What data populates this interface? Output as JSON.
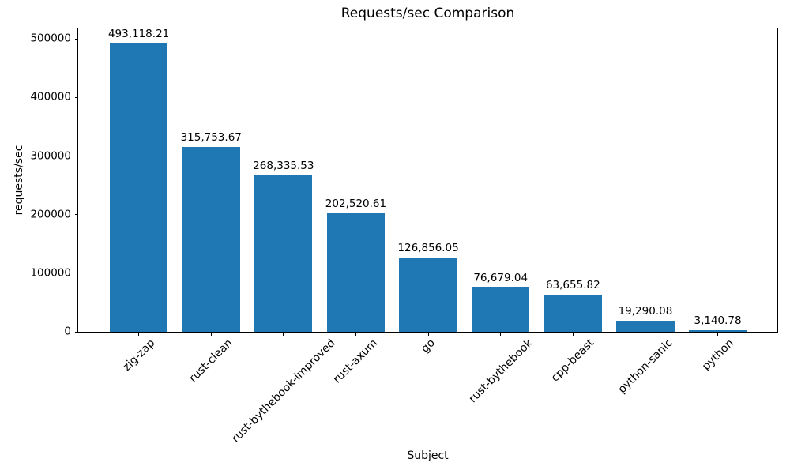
{
  "chart_data": {
    "type": "bar",
    "title": "Requests/sec Comparison",
    "xlabel": "Subject",
    "ylabel": "requests/sec",
    "categories": [
      "zig-zap",
      "rust-clean",
      "rust-bythebook-improved",
      "rust-axum",
      "go",
      "rust-bythebook",
      "cpp-beast",
      "python-sanic",
      "python"
    ],
    "values": [
      493118.21,
      315753.67,
      268335.53,
      202520.61,
      126856.05,
      76679.04,
      63655.82,
      19290.08,
      3140.78
    ],
    "value_labels": [
      "493,118.21",
      "315,753.67",
      "268,335.53",
      "202,520.61",
      "126,856.05",
      "76,679.04",
      "63,655.82",
      "19,290.08",
      "3,140.78"
    ],
    "ylim": [
      0,
      517774
    ],
    "yticks": [
      0,
      100000,
      200000,
      300000,
      400000,
      500000
    ],
    "ytick_labels": [
      "0",
      "100000",
      "200000",
      "300000",
      "400000",
      "500000"
    ],
    "bar_color": "#1f77b4",
    "grid": false,
    "legend": "none"
  }
}
